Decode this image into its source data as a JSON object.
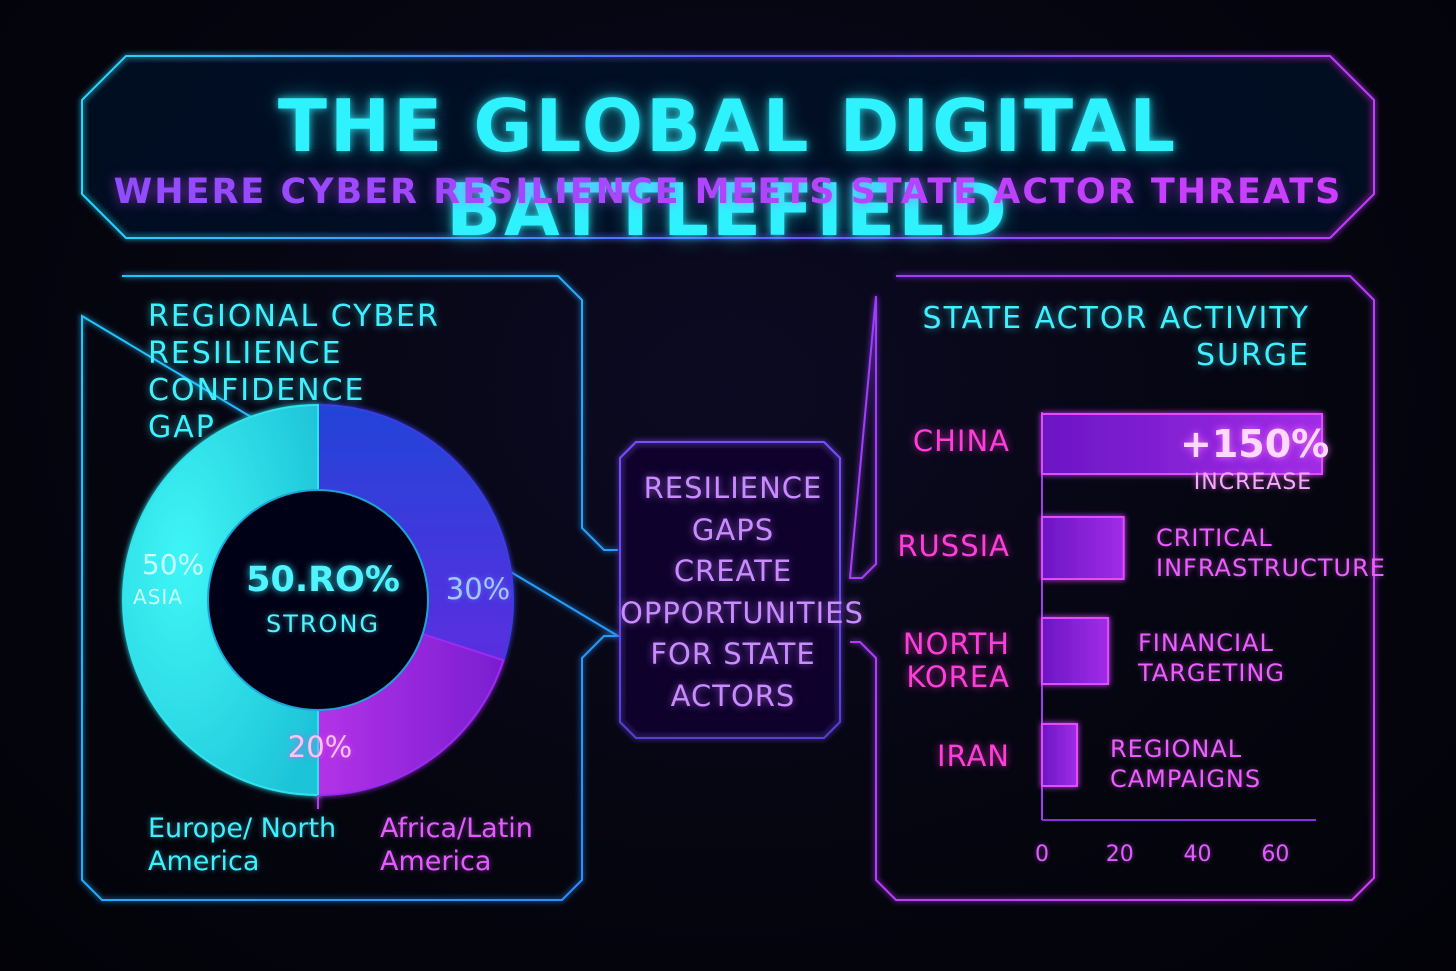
{
  "header": {
    "title": "THE GLOBAL DIGITAL BATTLEFIELD",
    "subtitle": "WHERE CYBER RESILIENCE MEETS STATE ACTOR THREATS"
  },
  "center": {
    "lines": [
      "RESILIENCE",
      "GAPS",
      "CREATE",
      "OPPORTUNITIES",
      "FOR STATE",
      "ACTORS"
    ]
  },
  "colors": {
    "cyan": "#2ff2ff",
    "blue": "#3a3de0",
    "purple": "#9d2cf0",
    "magenta": "#ff3dd9"
  },
  "chart_data": [
    {
      "type": "pie",
      "title_lines": [
        "REGIONAL CYBER",
        "RESILIENCE CONFIDENCE",
        "GAP"
      ],
      "center_value": "50.RO%",
      "center_label": "STRONG",
      "slices": [
        {
          "label": "ASIA",
          "display": "50%",
          "value": 50,
          "color": "#2ee4ee"
        },
        {
          "label": "",
          "display": "30%",
          "value": 30,
          "color": "#3a3de0"
        },
        {
          "label": "",
          "display": "20%",
          "value": 20,
          "color": "#9d2cf0"
        }
      ],
      "legend": {
        "eu": [
          "Europe/ North",
          "America"
        ],
        "af": [
          "Africa/Latin",
          "America"
        ]
      }
    },
    {
      "type": "bar",
      "orientation": "horizontal",
      "title_lines": [
        "STATE ACTOR ACTIVITY",
        "SURGE"
      ],
      "categories": [
        "CHINA",
        "RUSSIA",
        "NORTH KOREA",
        "IRAN"
      ],
      "category_lines": [
        [
          "CHINA"
        ],
        [
          "RUSSIA"
        ],
        [
          "NORTH",
          "KOREA"
        ],
        [
          "IRAN"
        ]
      ],
      "values": [
        72,
        21,
        17,
        9
      ],
      "annotations": [
        {
          "big": "+150%",
          "small": "INCREASE"
        },
        {
          "lines": [
            "CRITICAL",
            "INFRASTRUCTURE"
          ]
        },
        {
          "lines": [
            "FINANCIAL",
            "TARGETING"
          ]
        },
        {
          "lines": [
            "REGIONAL",
            "CAMPAIGNS"
          ]
        }
      ],
      "xticks": [
        "0",
        "20",
        "40",
        "60"
      ],
      "tick_values": [
        0,
        20,
        40,
        60
      ],
      "xlim": [
        0,
        72
      ]
    }
  ]
}
